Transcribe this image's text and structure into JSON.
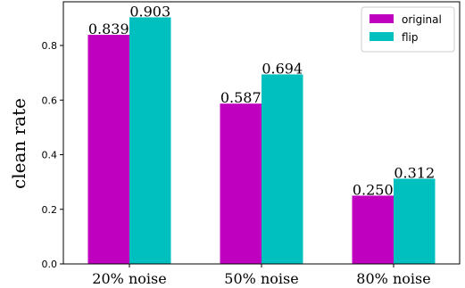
{
  "chart_data": {
    "type": "bar",
    "categories": [
      "20% noise",
      "50% noise",
      "80% noise"
    ],
    "series": [
      {
        "name": "original",
        "color": "#bf00bf",
        "values": [
          0.839,
          0.587,
          0.25
        ]
      },
      {
        "name": "flip",
        "color": "#00bfbf",
        "values": [
          0.903,
          0.694,
          0.312
        ]
      }
    ],
    "data_labels": [
      [
        "0.839",
        "0.587",
        "0.250"
      ],
      [
        "0.903",
        "0.694",
        "0.312"
      ]
    ],
    "ylabel": "clean rate",
    "xlabel": "",
    "ylim": [
      0,
      0.96
    ],
    "yticks": [
      "0.0",
      "0.2",
      "0.4",
      "0.6",
      "0.8"
    ],
    "legend_position": "top-right",
    "grid": false
  }
}
